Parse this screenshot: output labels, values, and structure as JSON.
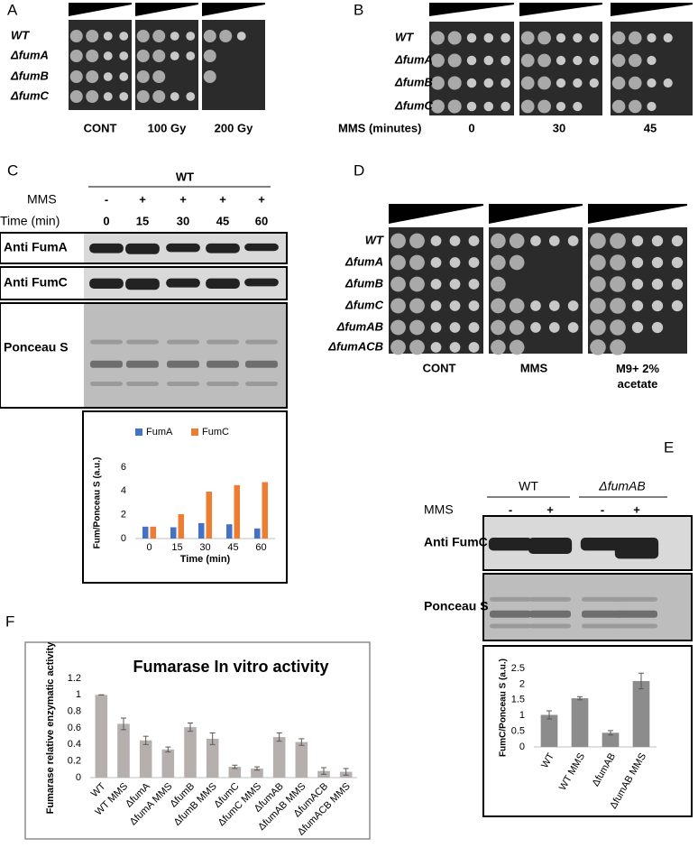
{
  "panels": {
    "A": {
      "label": "A",
      "strains": [
        "WT",
        "ΔfumA",
        "ΔfumB",
        "ΔfumC"
      ],
      "conditions": [
        "CONT",
        "100 Gy",
        "200 Gy"
      ]
    },
    "B": {
      "label": "B",
      "strains": [
        "WT",
        "ΔfumA",
        "ΔfumB",
        "ΔfumC"
      ],
      "axis_label": "MMS (minutes)",
      "conditions": [
        "0",
        "30",
        "45"
      ]
    },
    "C": {
      "label": "C",
      "strain": "WT",
      "mms_label": "MMS",
      "mms": [
        "-",
        "+",
        "+",
        "+",
        "+"
      ],
      "time_label": "Time (min)",
      "times": [
        "0",
        "15",
        "30",
        "45",
        "60"
      ],
      "blots": [
        "Anti FumA",
        "Anti FumC",
        "Ponceau S"
      ]
    },
    "D": {
      "label": "D",
      "strains": [
        "WT",
        "ΔfumA",
        "ΔfumB",
        "ΔfumC",
        "ΔfumAB",
        "ΔfumACB"
      ],
      "conditions": [
        "CONT",
        "MMS",
        "M9+ 2% acetate"
      ]
    },
    "E": {
      "label": "E",
      "groups": [
        "WT",
        "ΔfumAB"
      ],
      "mms_label": "MMS",
      "mms": [
        "-",
        "+",
        "-",
        "+"
      ],
      "blots": [
        "Anti FumC",
        "Ponceau S"
      ]
    },
    "F": {
      "label": "F"
    }
  },
  "chart_data": [
    {
      "type": "bar",
      "xlabel": "Time (min)",
      "ylabel": "Fum/Ponceau S (a.u.)",
      "categories": [
        "0",
        "15",
        "30",
        "45",
        "60"
      ],
      "series": [
        {
          "name": "FumA",
          "color": "#4472c4",
          "values": [
            1,
            0.95,
            1.3,
            1.2,
            0.85
          ]
        },
        {
          "name": "FumC",
          "color": "#ed7d31",
          "values": [
            1,
            2.05,
            3.95,
            4.5,
            4.75
          ]
        }
      ],
      "ylim": [
        0,
        6
      ],
      "yticks": [
        0,
        2,
        4,
        6
      ],
      "grid": false,
      "legend": "top"
    },
    {
      "type": "bar",
      "ylabel": "FumC/Ponceau S (a.u.)",
      "categories": [
        "WT",
        "WT MMS",
        "ΔfumAB",
        "ΔfumAB MMS"
      ],
      "values": [
        1.02,
        1.55,
        0.45,
        2.1
      ],
      "errors": [
        0.13,
        0.05,
        0.07,
        0.25
      ],
      "color": "#8c8c8c",
      "ylim": [
        0,
        2.5
      ],
      "yticks": [
        0,
        0.5,
        1,
        1.5,
        2,
        2.5
      ],
      "grid": false
    },
    {
      "type": "bar",
      "title": "Fumarase In vitro activity",
      "ylabel": "Fumarase relative enzymatic activity",
      "categories": [
        "WT",
        "WT MMS",
        "ΔfumA",
        "ΔfumA MMS",
        "ΔfumB",
        "ΔfumB MMS",
        "ΔfumC",
        "ΔfumC MMS",
        "ΔfumAB",
        "ΔfumAB MMS",
        "ΔfumACB",
        "ΔfumACB MMS"
      ],
      "values": [
        1,
        0.65,
        0.45,
        0.34,
        0.61,
        0.47,
        0.13,
        0.11,
        0.49,
        0.43,
        0.08,
        0.07
      ],
      "errors": [
        0,
        0.07,
        0.05,
        0.03,
        0.05,
        0.07,
        0.02,
        0.02,
        0.05,
        0.04,
        0.04,
        0.04
      ],
      "color": "#b5afae",
      "ylim": [
        0,
        1.2
      ],
      "yticks": [
        0,
        0.2,
        0.4,
        0.6,
        0.8,
        1,
        1.2
      ],
      "grid": false
    }
  ]
}
